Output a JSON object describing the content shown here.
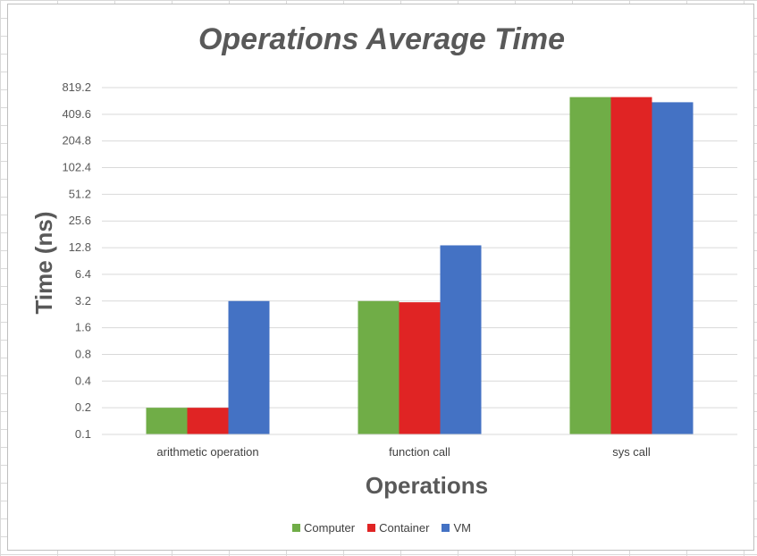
{
  "chart_data": {
    "type": "bar",
    "title": "Operations Average Time",
    "xlabel": "Operations",
    "ylabel": "Time (ns)",
    "y_scale": "log2",
    "ylim": [
      0.1,
      819.2
    ],
    "y_ticks": [
      "0.1",
      "0.2",
      "0.4",
      "0.8",
      "1.6",
      "3.2",
      "6.4",
      "12.8",
      "25.6",
      "51.2",
      "102.4",
      "204.8",
      "409.6",
      "819.2"
    ],
    "categories": [
      "arithmetic operation",
      "function call",
      "sys call"
    ],
    "series": [
      {
        "name": "Computer",
        "color": "#70ad47",
        "values": [
          0.2,
          3.2,
          640
        ]
      },
      {
        "name": "Container",
        "color": "#e02424",
        "values": [
          0.2,
          3.1,
          640
        ]
      },
      {
        "name": "VM",
        "color": "#4472c4",
        "values": [
          3.2,
          13.6,
          560
        ]
      }
    ],
    "grid": true,
    "legend_position": "bottom"
  }
}
